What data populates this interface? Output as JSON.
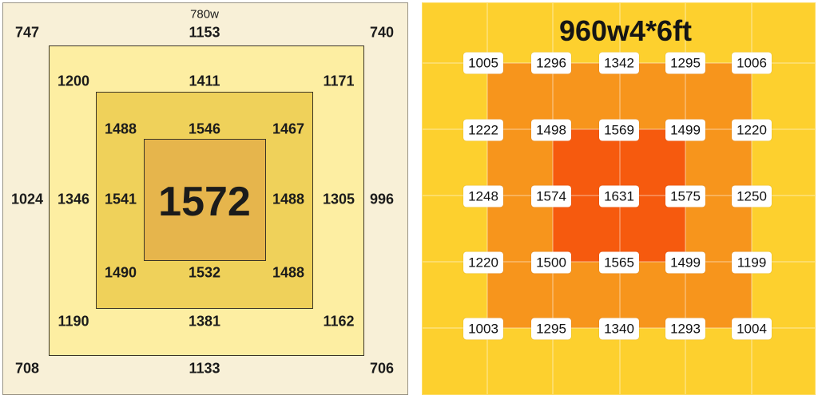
{
  "chart_data": [
    {
      "type": "heatmap",
      "title": "",
      "label": "780w",
      "colors": {
        "outer": "#f8f0d7",
        "ring1": "#fdeea2",
        "ring2": "#efd15a",
        "center": "#e6b54c"
      },
      "rows": [
        [
          "747",
          "",
          "",
          "1153",
          "",
          "",
          "740"
        ],
        [
          "",
          "1200",
          "",
          "1411",
          "",
          "1171",
          ""
        ],
        [
          "",
          "",
          "1488",
          "1546",
          "1467",
          "",
          ""
        ],
        [
          "1024",
          "1346",
          "1541",
          "1572",
          "1488",
          "1305",
          "996"
        ],
        [
          "",
          "",
          "1490",
          "1532",
          "1488",
          "",
          ""
        ],
        [
          "",
          "1190",
          "",
          "1381",
          "",
          "1162",
          ""
        ],
        [
          "708",
          "",
          "",
          "1133",
          "",
          "",
          "706"
        ]
      ]
    },
    {
      "type": "heatmap",
      "title": "960w4*6ft",
      "colors": {
        "base": "#fdd02e",
        "ring1": "#f7951c",
        "ring2": "#f65a0e"
      },
      "rows": [
        [
          "1005",
          "1296",
          "1342",
          "1295",
          "1006"
        ],
        [
          "1222",
          "1498",
          "1569",
          "1499",
          "1220"
        ],
        [
          "1248",
          "1574",
          "1631",
          "1575",
          "1250"
        ],
        [
          "1220",
          "1500",
          "1565",
          "1499",
          "1199"
        ],
        [
          "1003",
          "1295",
          "1340",
          "1293",
          "1004"
        ]
      ]
    }
  ]
}
